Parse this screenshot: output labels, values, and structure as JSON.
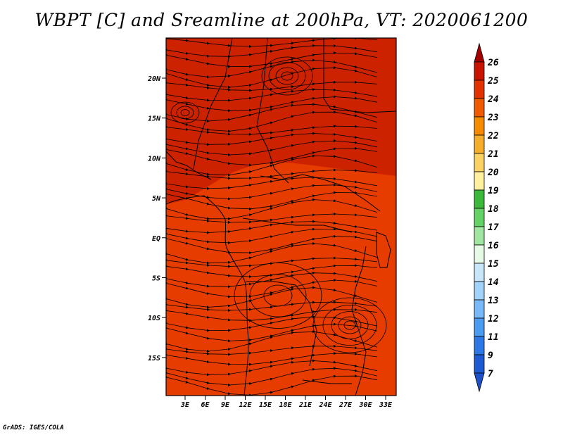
{
  "title": "WBPT [C] and Sreamline at 200hPa, VT: 2020061200",
  "credit": "GrADS: IGES/COLA",
  "map": {
    "lat_labels": [
      "20N",
      "15N",
      "10N",
      "5N",
      "EQ",
      "5S",
      "10S",
      "15S"
    ],
    "lon_labels": [
      "3E",
      "6E",
      "9E",
      "12E",
      "15E",
      "18E",
      "21E",
      "24E",
      "27E",
      "30E",
      "33E"
    ],
    "fill_colors": {
      "north": "#cc2200",
      "south": "#e63c00",
      "transition": "#d82e00"
    }
  },
  "colorbar": {
    "labels": [
      "26",
      "25",
      "24",
      "23",
      "22",
      "21",
      "20",
      "19",
      "18",
      "17",
      "16",
      "15",
      "14",
      "13",
      "12",
      "11",
      "9",
      "7"
    ],
    "colors": [
      "#a50000",
      "#c81400",
      "#e13200",
      "#f05a00",
      "#f58c00",
      "#f5ad2d",
      "#fad264",
      "#fff0a0",
      "#3cb83c",
      "#64d264",
      "#a0e6a0",
      "#e6fae6",
      "#c8e6fa",
      "#a0d2fa",
      "#78b9fa",
      "#4b9bf0",
      "#2d78e6",
      "#1e5ad2",
      "#1e50c8"
    ]
  }
}
